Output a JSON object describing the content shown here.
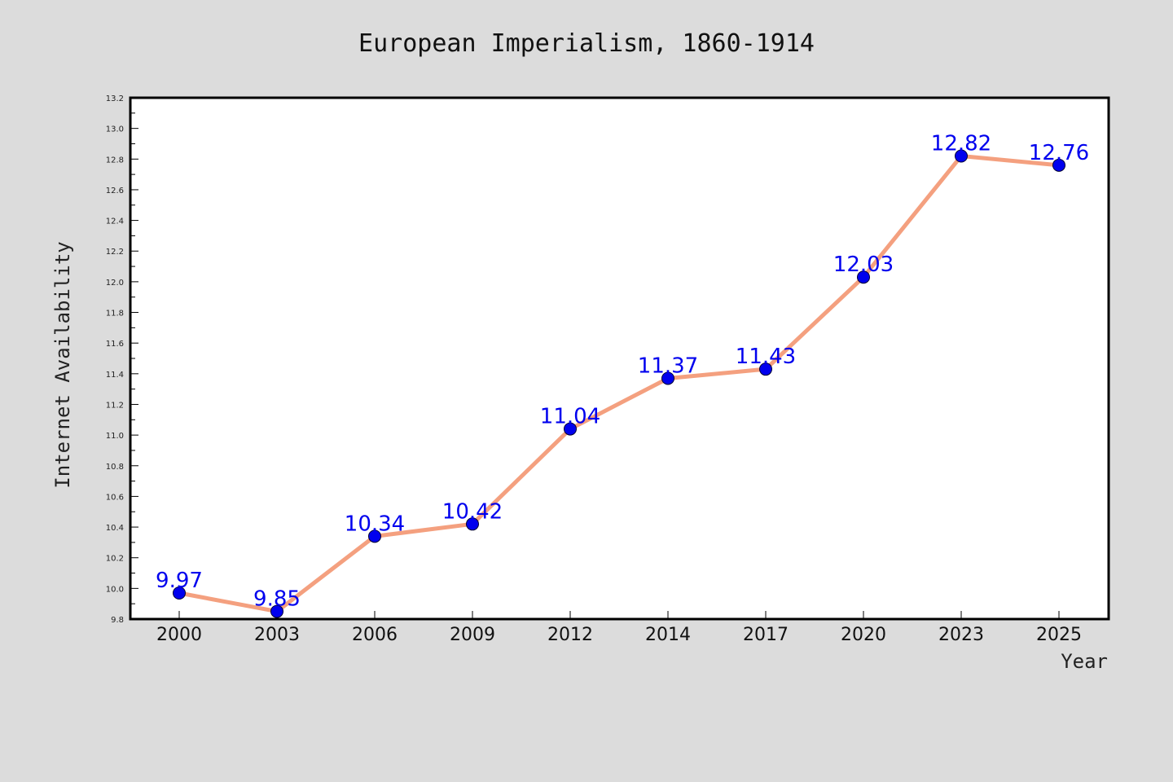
{
  "chart_data": {
    "type": "line",
    "title": "European Imperialism, 1860-1914",
    "xlabel": "Year",
    "ylabel": "Internet Availability",
    "categories": [
      "2000",
      "2003",
      "2006",
      "2009",
      "2012",
      "2014",
      "2017",
      "2020",
      "2023",
      "2025"
    ],
    "series": [
      {
        "values": [
          9.97,
          9.85,
          10.34,
          10.42,
          11.04,
          11.37,
          11.43,
          12.03,
          12.82,
          12.76
        ],
        "data_labels": [
          "9.97",
          "9.85",
          "10.34",
          "10.42",
          "11.04",
          "11.37",
          "11.43",
          "12.03",
          "12.82",
          "12.76"
        ]
      }
    ],
    "ylim": [
      9.8,
      13.2
    ],
    "yticks": [
      "9.8",
      "10.0",
      "10.2",
      "10.4",
      "10.6",
      "10.8",
      "11.0",
      "11.2",
      "11.4",
      "11.6",
      "11.8",
      "12.0",
      "12.2",
      "12.4",
      "12.6",
      "12.8",
      "13.0",
      "13.2"
    ],
    "grid": false,
    "legend": "none",
    "colors": {
      "background": "#dcdcdc",
      "plot_background": "#ffffff",
      "line": "#f4a07f",
      "marker": "#0000ee",
      "data_label": "#0000ee"
    }
  }
}
